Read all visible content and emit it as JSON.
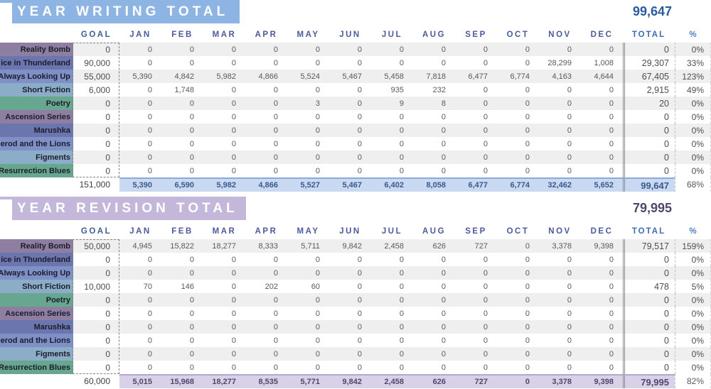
{
  "columns": [
    "GOAL",
    "JAN",
    "FEB",
    "MAR",
    "APR",
    "MAY",
    "JUN",
    "JUL",
    "AUG",
    "SEP",
    "OCT",
    "NOV",
    "DEC",
    "TOTAL",
    "%"
  ],
  "label_colors": [
    "#8e7fa2",
    "#6c76ae",
    "#7e90c6",
    "#8badc8",
    "#68a78f"
  ],
  "stripe_color": "#efefef",
  "tables": [
    {
      "id": "writing",
      "title": "YEAR WRITING TOTAL",
      "grand_total": "99,647",
      "theme": {
        "banner_bg": "#8db4e2",
        "grand_total_color": "#2a5b9e",
        "totals_bg": "#c9d9f1",
        "totals_text": "#3a5a88",
        "totals_border": "#8ea9db"
      },
      "rows": [
        {
          "label": "Reality Bomb",
          "values": [
            "0",
            "0",
            "0",
            "0",
            "0",
            "0",
            "0",
            "0",
            "0",
            "0",
            "0",
            "0",
            "0",
            "0",
            "0%"
          ]
        },
        {
          "label": "ice in Thunderland",
          "values": [
            "90,000",
            "0",
            "0",
            "0",
            "0",
            "0",
            "0",
            "0",
            "0",
            "0",
            "0",
            "28,299",
            "1,008",
            "29,307",
            "33%"
          ]
        },
        {
          "label": "Always Looking Up",
          "values": [
            "55,000",
            "5,390",
            "4,842",
            "5,982",
            "4,866",
            "5,524",
            "5,467",
            "5,458",
            "7,818",
            "6,477",
            "6,774",
            "4,163",
            "4,644",
            "67,405",
            "123%"
          ]
        },
        {
          "label": "Short Fiction",
          "values": [
            "6,000",
            "0",
            "1,748",
            "0",
            "0",
            "0",
            "0",
            "935",
            "232",
            "0",
            "0",
            "0",
            "0",
            "2,915",
            "49%"
          ]
        },
        {
          "label": "Poetry",
          "values": [
            "0",
            "0",
            "0",
            "0",
            "0",
            "3",
            "0",
            "9",
            "8",
            "0",
            "0",
            "0",
            "0",
            "20",
            "0%"
          ]
        },
        {
          "label": "Ascension Series",
          "values": [
            "0",
            "0",
            "0",
            "0",
            "0",
            "0",
            "0",
            "0",
            "0",
            "0",
            "0",
            "0",
            "0",
            "0",
            "0%"
          ]
        },
        {
          "label": "Marushka",
          "values": [
            "0",
            "0",
            "0",
            "0",
            "0",
            "0",
            "0",
            "0",
            "0",
            "0",
            "0",
            "0",
            "0",
            "0",
            "0%"
          ]
        },
        {
          "label": "erod and the Lions",
          "values": [
            "0",
            "0",
            "0",
            "0",
            "0",
            "0",
            "0",
            "0",
            "0",
            "0",
            "0",
            "0",
            "0",
            "0",
            "0%"
          ]
        },
        {
          "label": "Figments",
          "values": [
            "0",
            "0",
            "0",
            "0",
            "0",
            "0",
            "0",
            "0",
            "0",
            "0",
            "0",
            "0",
            "0",
            "0",
            "0%"
          ]
        },
        {
          "label": "Resurrection Blues",
          "values": [
            "0",
            "0",
            "0",
            "0",
            "0",
            "0",
            "0",
            "0",
            "0",
            "0",
            "0",
            "0",
            "0",
            "0",
            "0%"
          ]
        }
      ],
      "totals": [
        "151,000",
        "5,390",
        "6,590",
        "5,982",
        "4,866",
        "5,527",
        "5,467",
        "6,402",
        "8,058",
        "6,477",
        "6,774",
        "32,462",
        "5,652",
        "99,647",
        "68%"
      ]
    },
    {
      "id": "revision",
      "title": "YEAR REVISION TOTAL",
      "grand_total": "79,995",
      "theme": {
        "banner_bg": "#c3b8d9",
        "grand_total_color": "#52466b",
        "totals_bg": "#d8d1e8",
        "totals_text": "#52466b",
        "totals_border": "#b3a6cf"
      },
      "rows": [
        {
          "label": "Reality Bomb",
          "values": [
            "50,000",
            "4,945",
            "15,822",
            "18,277",
            "8,333",
            "5,711",
            "9,842",
            "2,458",
            "626",
            "727",
            "0",
            "3,378",
            "9,398",
            "79,517",
            "159%"
          ]
        },
        {
          "label": "ice in Thunderland",
          "values": [
            "0",
            "0",
            "0",
            "0",
            "0",
            "0",
            "0",
            "0",
            "0",
            "0",
            "0",
            "0",
            "0",
            "0",
            "0%"
          ]
        },
        {
          "label": "Always Looking Up",
          "values": [
            "0",
            "0",
            "0",
            "0",
            "0",
            "0",
            "0",
            "0",
            "0",
            "0",
            "0",
            "0",
            "0",
            "0",
            "0%"
          ]
        },
        {
          "label": "Short Fiction",
          "values": [
            "10,000",
            "70",
            "146",
            "0",
            "202",
            "60",
            "0",
            "0",
            "0",
            "0",
            "0",
            "0",
            "0",
            "478",
            "5%"
          ]
        },
        {
          "label": "Poetry",
          "values": [
            "0",
            "0",
            "0",
            "0",
            "0",
            "0",
            "0",
            "0",
            "0",
            "0",
            "0",
            "0",
            "0",
            "0",
            "0%"
          ]
        },
        {
          "label": "Ascension Series",
          "values": [
            "0",
            "0",
            "0",
            "0",
            "0",
            "0",
            "0",
            "0",
            "0",
            "0",
            "0",
            "0",
            "0",
            "0",
            "0%"
          ]
        },
        {
          "label": "Marushka",
          "values": [
            "0",
            "0",
            "0",
            "0",
            "0",
            "0",
            "0",
            "0",
            "0",
            "0",
            "0",
            "0",
            "0",
            "0",
            "0%"
          ]
        },
        {
          "label": "erod and the Lions",
          "values": [
            "0",
            "0",
            "0",
            "0",
            "0",
            "0",
            "0",
            "0",
            "0",
            "0",
            "0",
            "0",
            "0",
            "0",
            "0%"
          ]
        },
        {
          "label": "Figments",
          "values": [
            "0",
            "0",
            "0",
            "0",
            "0",
            "0",
            "0",
            "0",
            "0",
            "0",
            "0",
            "0",
            "0",
            "0",
            "0%"
          ]
        },
        {
          "label": "Resurrection Blues",
          "values": [
            "0",
            "0",
            "0",
            "0",
            "0",
            "0",
            "0",
            "0",
            "0",
            "0",
            "0",
            "0",
            "0",
            "0",
            "0%"
          ]
        }
      ],
      "totals": [
        "60,000",
        "5,015",
        "15,968",
        "18,277",
        "8,535",
        "5,771",
        "9,842",
        "2,458",
        "626",
        "727",
        "0",
        "3,378",
        "9,398",
        "79,995",
        "82%"
      ]
    }
  ]
}
